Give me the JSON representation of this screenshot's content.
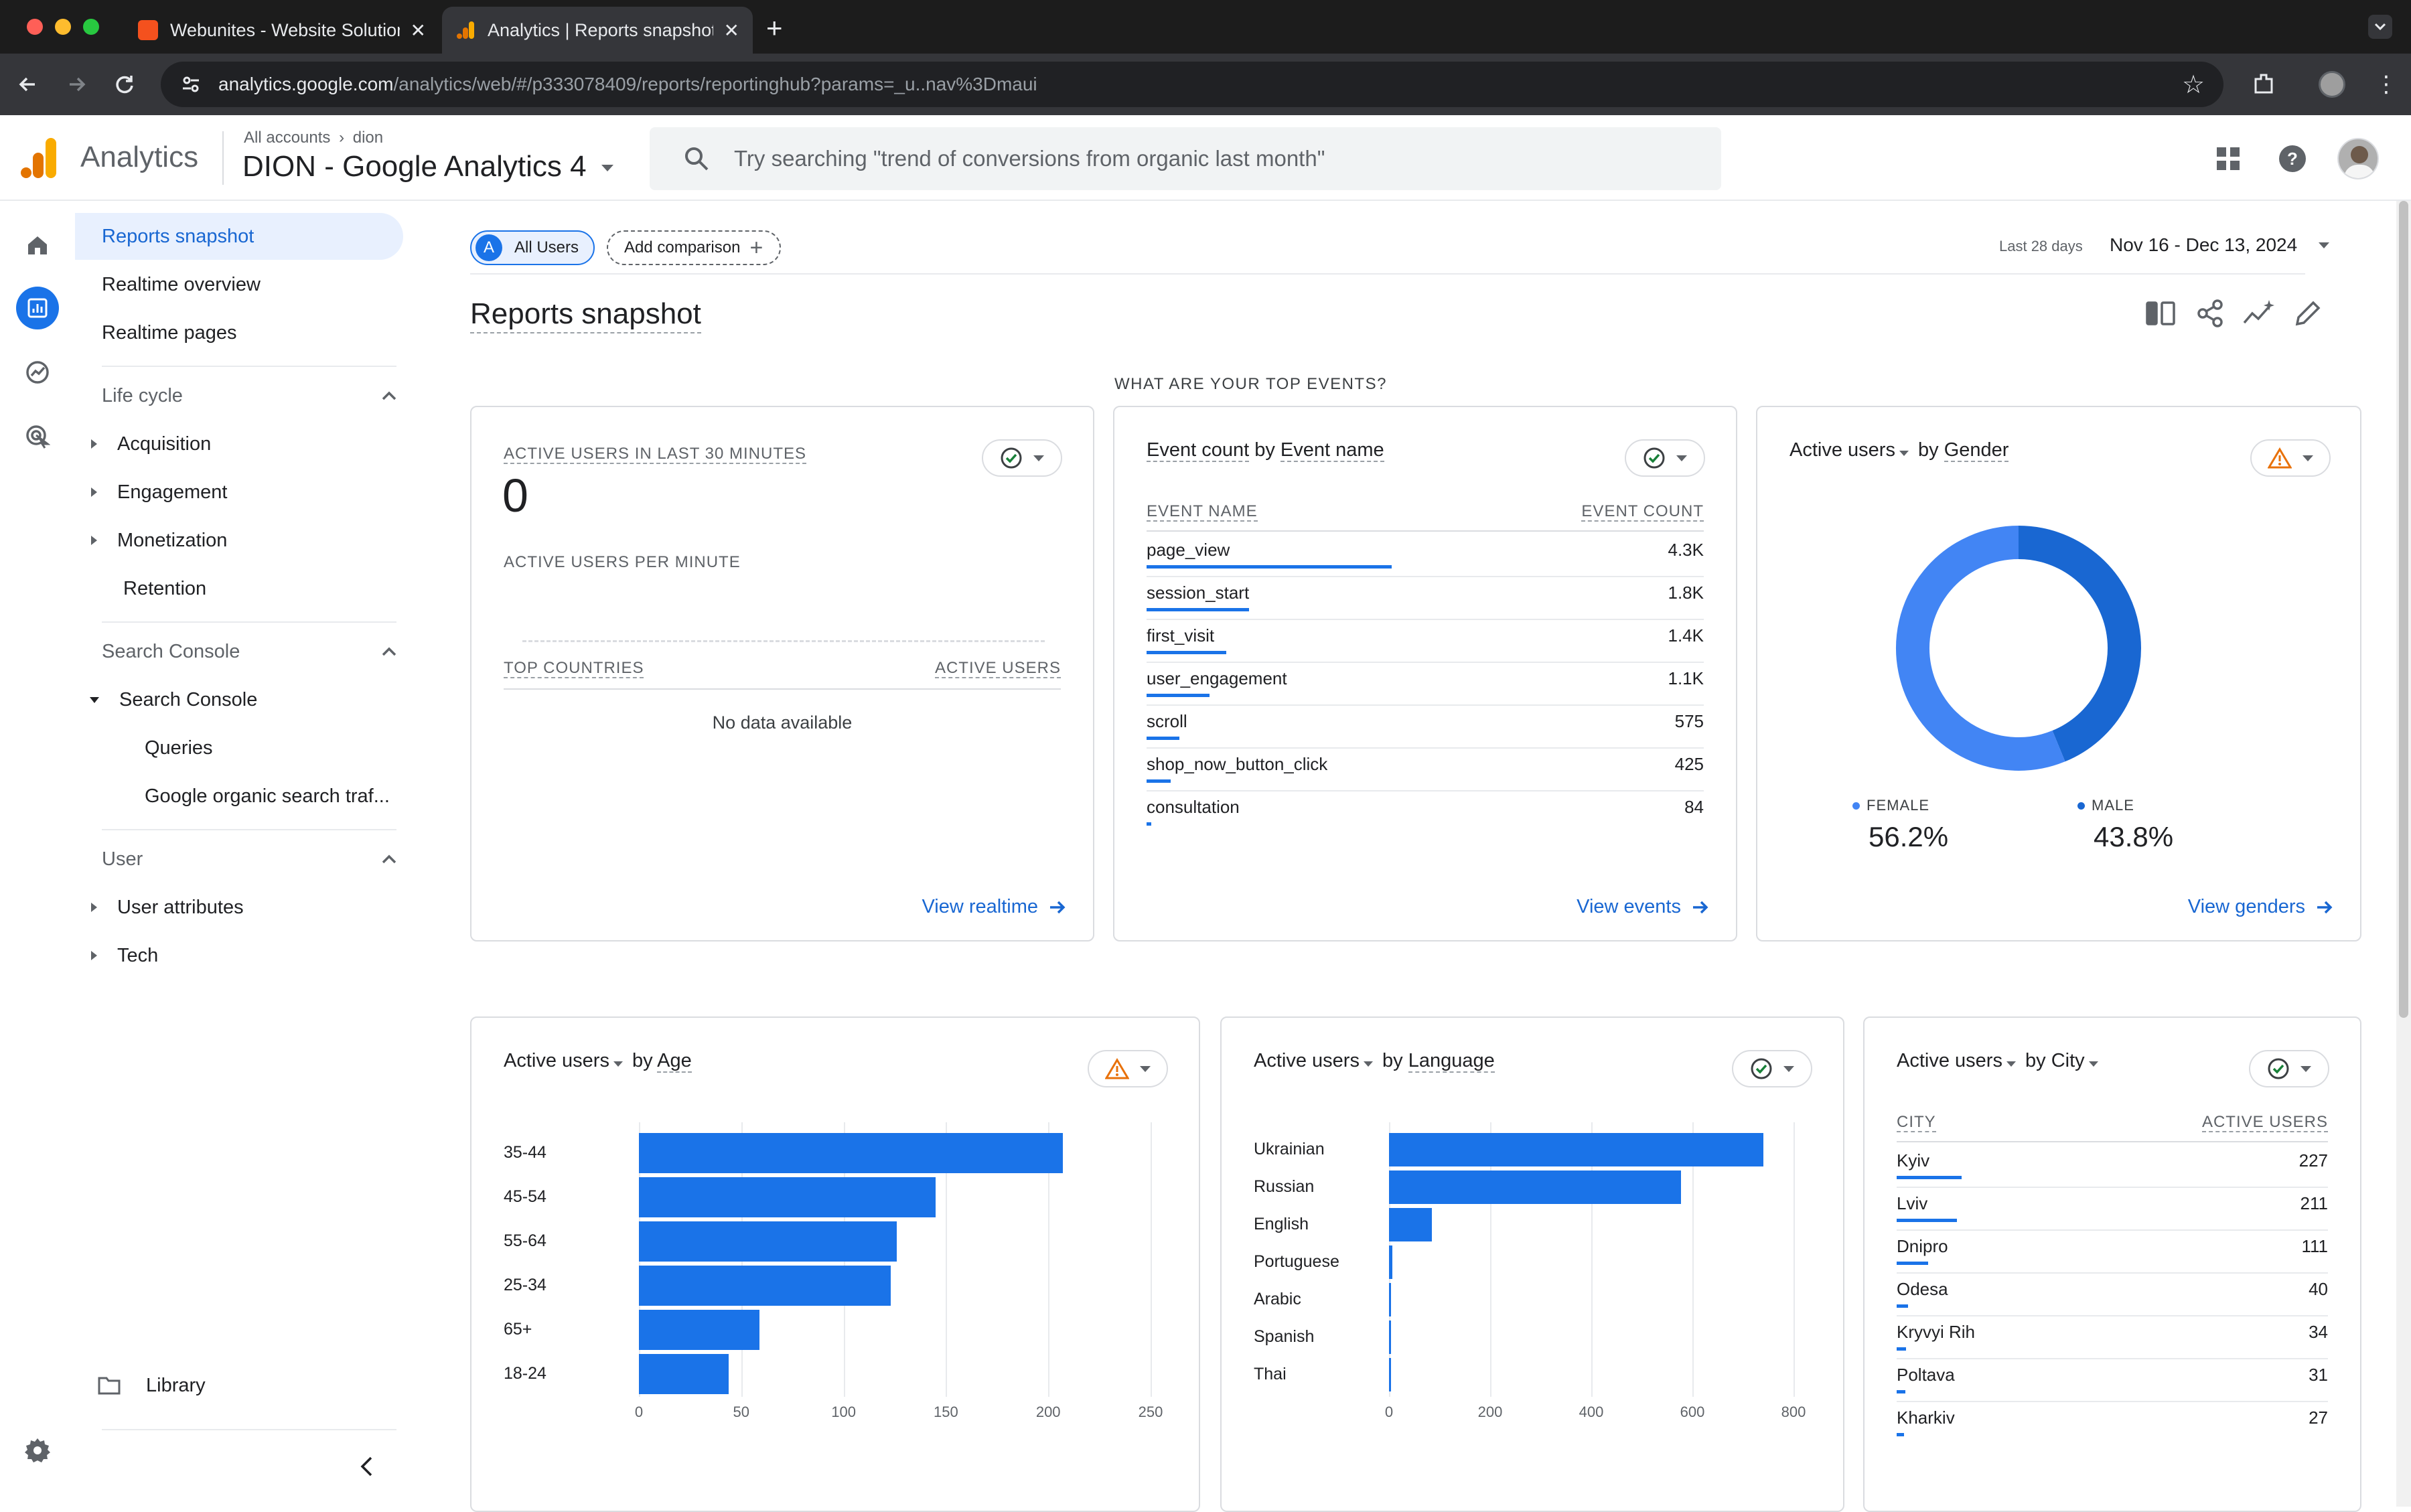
{
  "browser": {
    "tabs": [
      {
        "title": "Webunites - Website Solutions",
        "active": false
      },
      {
        "title": "Analytics | Reports snapshot",
        "active": true
      }
    ],
    "url_host": "analytics.google.com",
    "url_path": "/analytics/web/#/p333078409/reports/reportinghub?params=_u..nav%3Dmaui"
  },
  "header": {
    "brand": "Analytics",
    "breadcrumb": "All accounts",
    "breadcrumb_account": "dion",
    "property": "DION - Google Analytics 4",
    "search_placeholder": "Try searching \"trend of conversions from organic last month\""
  },
  "nav": {
    "top_items": [
      "Reports snapshot",
      "Realtime overview",
      "Realtime pages"
    ],
    "lifecycle": {
      "label": "Life cycle",
      "items": [
        "Acquisition",
        "Engagement",
        "Monetization",
        "Retention"
      ]
    },
    "search_console": {
      "label": "Search Console",
      "group": "Search Console",
      "items": [
        "Queries",
        "Google organic search traf..."
      ]
    },
    "user": {
      "label": "User",
      "items": [
        "User attributes",
        "Tech"
      ]
    },
    "library": "Library"
  },
  "toolbar": {
    "segment_letter": "A",
    "segment": "All Users",
    "add_comparison": "Add comparison",
    "date_label": "Last 28 days",
    "date_range": "Nov 16 - Dec 13, 2024",
    "page_title": "Reports snapshot",
    "section_heading": "WHAT ARE YOUR TOP EVENTS?"
  },
  "realtime_card": {
    "title": "ACTIVE USERS IN LAST 30 MINUTES",
    "value": "0",
    "per_minute": "ACTIVE USERS PER MINUTE",
    "col_countries": "TOP COUNTRIES",
    "col_users": "ACTIVE USERS",
    "empty": "No data available",
    "link": "View realtime"
  },
  "events_card": {
    "title_metric": "Event count",
    "title_by": "by",
    "title_dim": "Event name",
    "col_name": "EVENT NAME",
    "col_count": "EVENT COUNT",
    "rows": [
      {
        "name": "page_view",
        "value": "4.3K",
        "n": 4300
      },
      {
        "name": "session_start",
        "value": "1.8K",
        "n": 1800
      },
      {
        "name": "first_visit",
        "value": "1.4K",
        "n": 1400
      },
      {
        "name": "user_engagement",
        "value": "1.1K",
        "n": 1100
      },
      {
        "name": "scroll",
        "value": "575",
        "n": 575
      },
      {
        "name": "shop_now_button_click",
        "value": "425",
        "n": 425
      },
      {
        "name": "consultation",
        "value": "84",
        "n": 84
      }
    ],
    "link": "View events"
  },
  "gender_card": {
    "title_metric": "Active users",
    "title_by": "by",
    "title_dim": "Gender",
    "female_label": "FEMALE",
    "female_value": "56.2%",
    "male_label": "MALE",
    "male_value": "43.8%",
    "link": "View genders"
  },
  "age_card": {
    "title_metric": "Active users",
    "title_by": "by",
    "title_dim": "Age"
  },
  "language_card": {
    "title_metric": "Active users",
    "title_by": "by",
    "title_dim": "Language"
  },
  "city_card": {
    "title_metric": "Active users",
    "title_by": "by",
    "title_dim": "City",
    "col_city": "CITY",
    "col_users": "ACTIVE USERS",
    "rows": [
      {
        "name": "Kyiv",
        "value": "227",
        "n": 227
      },
      {
        "name": "Lviv",
        "value": "211",
        "n": 211
      },
      {
        "name": "Dnipro",
        "value": "111",
        "n": 111
      },
      {
        "name": "Odesa",
        "value": "40",
        "n": 40
      },
      {
        "name": "Kryvyi Rih",
        "value": "34",
        "n": 34
      },
      {
        "name": "Poltava",
        "value": "31",
        "n": 31
      },
      {
        "name": "Kharkiv",
        "value": "27",
        "n": 27
      }
    ]
  },
  "colors": {
    "accent": "#1a73e8",
    "bar": "#1a73e8",
    "female": "#4285f4",
    "male": "#1967d2",
    "warning": "#e8710a"
  },
  "chart_data": [
    {
      "type": "bar",
      "orientation": "horizontal",
      "title": "Active users by Age",
      "categories": [
        "35-44",
        "45-54",
        "55-64",
        "25-34",
        "65+",
        "18-24"
      ],
      "values": [
        207,
        145,
        126,
        123,
        59,
        44
      ],
      "xlim": [
        0,
        250
      ],
      "ticks": [
        0,
        50,
        100,
        150,
        200,
        250
      ]
    },
    {
      "type": "bar",
      "orientation": "horizontal",
      "title": "Active users by Language",
      "categories": [
        "Ukrainian",
        "Russian",
        "English",
        "Portuguese",
        "Arabic",
        "Spanish",
        "Thai"
      ],
      "values": [
        740,
        577,
        85,
        6,
        3,
        2,
        2
      ],
      "xlim": [
        0,
        800
      ],
      "ticks": [
        0,
        200,
        400,
        600,
        800
      ]
    },
    {
      "type": "pie",
      "title": "Active users by Gender",
      "categories": [
        "FEMALE",
        "MALE"
      ],
      "values": [
        56.2,
        43.8
      ]
    }
  ]
}
